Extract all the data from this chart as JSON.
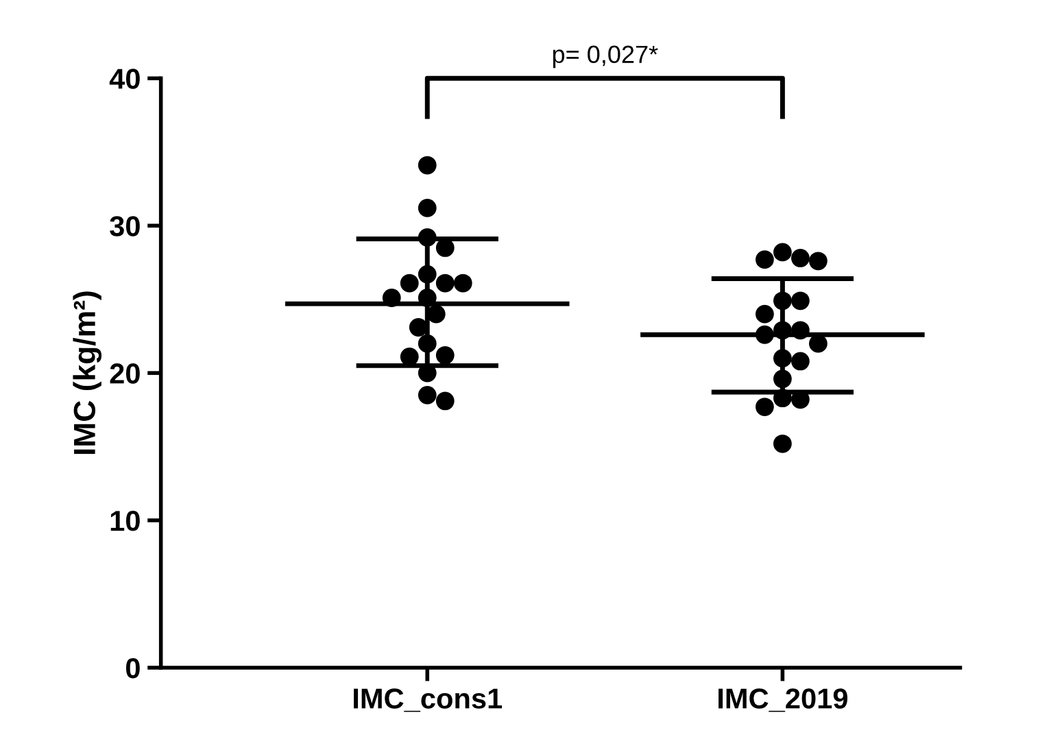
{
  "chart_data": {
    "type": "scatter",
    "ylabel": "IMC (kg/m²)",
    "categories": [
      "IMC_cons1",
      "IMC_2019"
    ],
    "series": [
      {
        "color": "#000000",
        "marker": "circle",
        "x": [
          "IMC_cons1",
          "IMC_cons1",
          "IMC_cons1",
          "IMC_cons1",
          "IMC_cons1",
          "IMC_cons1",
          "IMC_cons1",
          "IMC_cons1",
          "IMC_cons1",
          "IMC_cons1",
          "IMC_cons1",
          "IMC_cons1",
          "IMC_cons1",
          "IMC_cons1",
          "IMC_cons1",
          "IMC_cons1",
          "IMC_cons1",
          "IMC_cons1"
        ],
        "values": [
          34.1,
          31.2,
          29.2,
          28.5,
          26.1,
          26.7,
          26.1,
          26.1,
          25.1,
          25.1,
          24.0,
          23.1,
          22.0,
          21.2,
          21.1,
          20.0,
          18.5,
          18.1
        ]
      },
      {
        "color": "#000000",
        "marker": "circle",
        "x": [
          "IMC_2019",
          "IMC_2019",
          "IMC_2019",
          "IMC_2019",
          "IMC_2019",
          "IMC_2019",
          "IMC_2019",
          "IMC_2019",
          "IMC_2019",
          "IMC_2019",
          "IMC_2019",
          "IMC_2019",
          "IMC_2019",
          "IMC_2019",
          "IMC_2019",
          "IMC_2019",
          "IMC_2019",
          "IMC_2019"
        ],
        "values": [
          27.8,
          27.6,
          27.7,
          28.2,
          24.9,
          24.9,
          24.0,
          22.9,
          22.0,
          22.6,
          22.9,
          20.8,
          21.0,
          19.6,
          18.2,
          17.7,
          18.3,
          15.2
        ]
      },
      {
        "type": "box",
        "color": "#000000",
        "boxes": [
          {
            "low": 20.5,
            "q1": 24.7,
            "median": 24.7,
            "q3": 24.7,
            "high": 29.1
          },
          {
            "low": 18.7,
            "q1": 22.6,
            "median": 22.6,
            "q3": 22.6,
            "high": 26.4
          }
        ]
      }
    ],
    "ylim": [
      0,
      40
    ],
    "yticks": [
      0,
      10,
      20,
      30,
      40
    ],
    "grid": false,
    "annotations": [
      "p= 0,027*"
    ]
  }
}
